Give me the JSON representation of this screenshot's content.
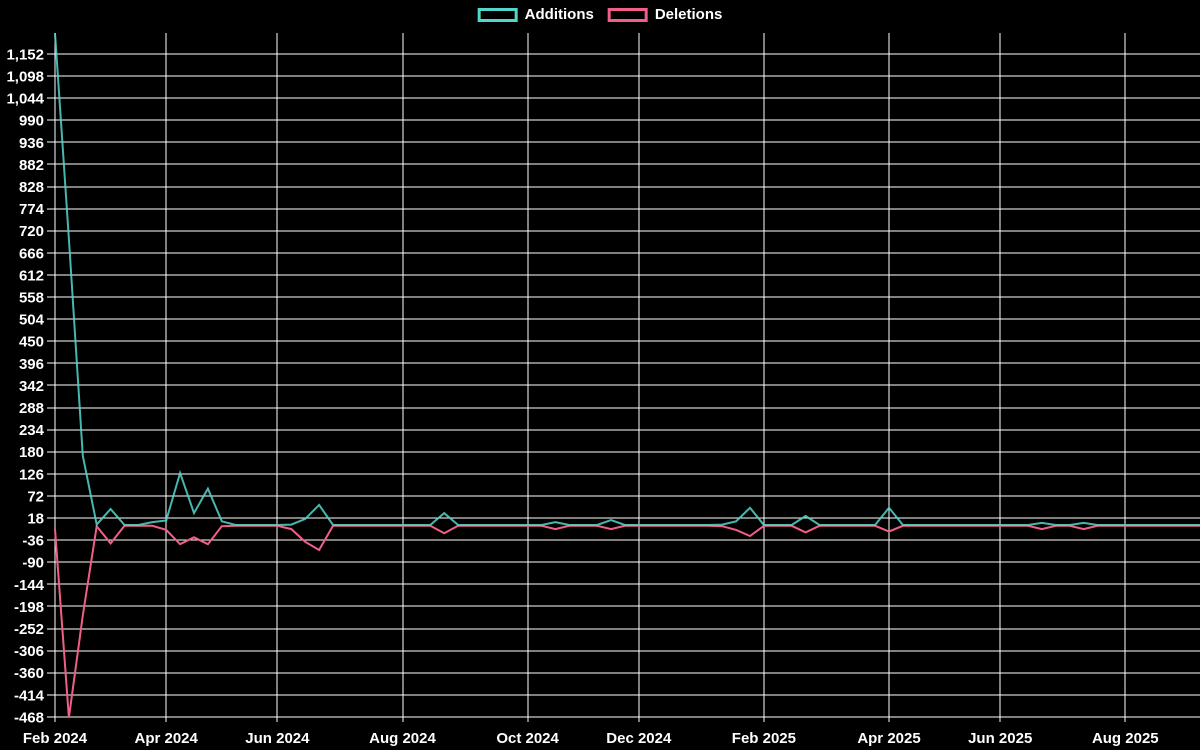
{
  "chart_data": {
    "type": "line",
    "title": "",
    "x_unit": "week",
    "grid": true,
    "background": "#000000",
    "grid_color": "#ffffff",
    "text_color": "#ffffff",
    "legend_position": "top-center",
    "x_axis": {
      "tick_labels": [
        "Feb 2024",
        "Apr 2024",
        "Jun 2024",
        "Aug 2024",
        "Oct 2024",
        "Dec 2024",
        "Feb 2025",
        "Apr 2025",
        "Jun 2025",
        "Aug 2025"
      ],
      "tick_week_indices": [
        0,
        8,
        16,
        25,
        34,
        42,
        51,
        60,
        68,
        77
      ],
      "total_weeks": 84
    },
    "y_axis": {
      "min": -468,
      "max": 1152,
      "step": 54,
      "tick_values": [
        1152,
        1098,
        1044,
        990,
        936,
        882,
        828,
        774,
        720,
        666,
        612,
        558,
        504,
        450,
        396,
        342,
        288,
        234,
        180,
        126,
        72,
        18,
        -36,
        -90,
        -144,
        -198,
        -252,
        -306,
        -360,
        -414,
        -468
      ],
      "tick_labels": [
        "1,152",
        "1,098",
        "1,044",
        "990",
        "936",
        "882",
        "828",
        "774",
        "720",
        "666",
        "612",
        "558",
        "504",
        "450",
        "396",
        "342",
        "288",
        "234",
        "180",
        "126",
        "72",
        "18",
        "-36",
        "-90",
        "-144",
        "-198",
        "-252",
        "-306",
        "-360",
        "-414",
        "-468"
      ]
    },
    "ylim": [
      -480,
      1203
    ],
    "series": [
      {
        "name": "Additions",
        "color": "#53d7cd",
        "values": [
          1203,
          700,
          170,
          2,
          40,
          1,
          1,
          8,
          12,
          128,
          30,
          90,
          10,
          1,
          1,
          1,
          1,
          2,
          16,
          50,
          1,
          1,
          1,
          1,
          1,
          1,
          1,
          1,
          30,
          1,
          1,
          1,
          1,
          1,
          1,
          1,
          8,
          1,
          1,
          1,
          13,
          1,
          1,
          1,
          1,
          1,
          1,
          1,
          2,
          10,
          43,
          1,
          1,
          1,
          23,
          1,
          1,
          1,
          1,
          1,
          43,
          1,
          1,
          1,
          1,
          1,
          1,
          1,
          1,
          1,
          1,
          6,
          1,
          1,
          6,
          1,
          1,
          1,
          1,
          1,
          1,
          1,
          1,
          1
        ]
      },
      {
        "name": "Deletions",
        "color": "#f05f87",
        "values": [
          -9,
          -470,
          -220,
          -2,
          -44,
          -1,
          -1,
          -1,
          -11,
          -46,
          -29,
          -46,
          -2,
          -1,
          -1,
          -1,
          -1,
          -9,
          -40,
          -60,
          -1,
          -1,
          -1,
          -1,
          -1,
          -1,
          -1,
          -1,
          -19,
          -1,
          -1,
          -1,
          -1,
          -1,
          -1,
          -1,
          -9,
          -1,
          -1,
          -1,
          -9,
          -1,
          -1,
          -1,
          -1,
          -1,
          -1,
          -1,
          -2,
          -11,
          -26,
          -1,
          -1,
          -1,
          -17,
          -1,
          -1,
          -1,
          -1,
          -1,
          -15,
          -1,
          -1,
          -1,
          -1,
          -1,
          -1,
          -1,
          -1,
          -1,
          -1,
          -9,
          -1,
          -1,
          -9,
          -1,
          -1,
          -1,
          -1,
          -1,
          -1,
          -1,
          -1,
          -1
        ]
      }
    ]
  }
}
